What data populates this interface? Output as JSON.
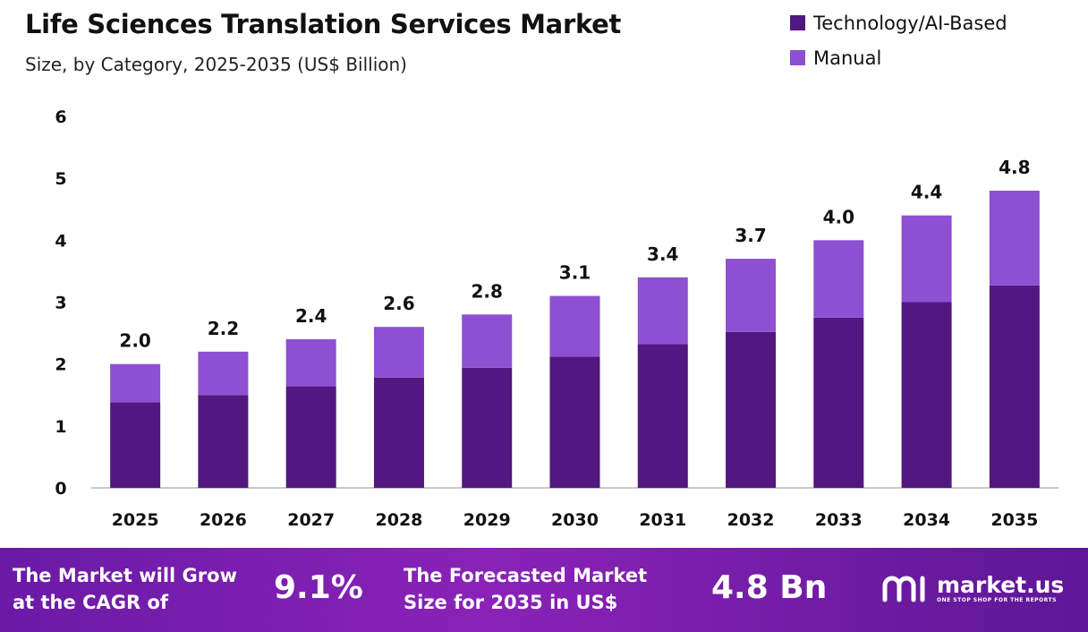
{
  "header": {
    "title": "Life Sciences Translation Services Market",
    "subtitle": "Size, by Category, 2025-2035 (US$ Billion)"
  },
  "colors": {
    "tech": "#521781",
    "manual": "#8d50d3",
    "footer_start": "#6a1aa6",
    "footer_end": "#5d1796"
  },
  "chart_data": {
    "type": "bar",
    "stacked": true,
    "categories": [
      "2025",
      "2026",
      "2027",
      "2028",
      "2029",
      "2030",
      "2031",
      "2032",
      "2033",
      "2034",
      "2035"
    ],
    "series": [
      {
        "name": "Technology/AI-Based",
        "values": [
          1.38,
          1.5,
          1.64,
          1.78,
          1.94,
          2.12,
          2.32,
          2.52,
          2.75,
          3.0,
          3.27
        ]
      },
      {
        "name": "Manual",
        "values": [
          0.62,
          0.7,
          0.76,
          0.82,
          0.86,
          0.98,
          1.08,
          1.18,
          1.25,
          1.4,
          1.53
        ]
      }
    ],
    "totals_labels": [
      "2.0",
      "2.2",
      "2.4",
      "2.6",
      "2.8",
      "3.1",
      "3.4",
      "3.7",
      "4.0",
      "4.4",
      "4.8"
    ],
    "ylim": [
      0,
      6
    ],
    "yticks": [
      "0",
      "1",
      "2",
      "3",
      "4",
      "5",
      "6"
    ],
    "xlabel": "",
    "ylabel": "",
    "grid": false,
    "legend_position": "top-right"
  },
  "footer": {
    "cagr_text_line1": "The Market will Grow",
    "cagr_text_line2": "at the CAGR of",
    "cagr_value": "9.1%",
    "forecast_text_line1": "The Forecasted Market",
    "forecast_text_line2": "Size for 2035 in US$",
    "forecast_value": "4.8 Bn",
    "brand_name": "market.us",
    "brand_tagline": "ONE STOP SHOP FOR THE REPORTS"
  }
}
